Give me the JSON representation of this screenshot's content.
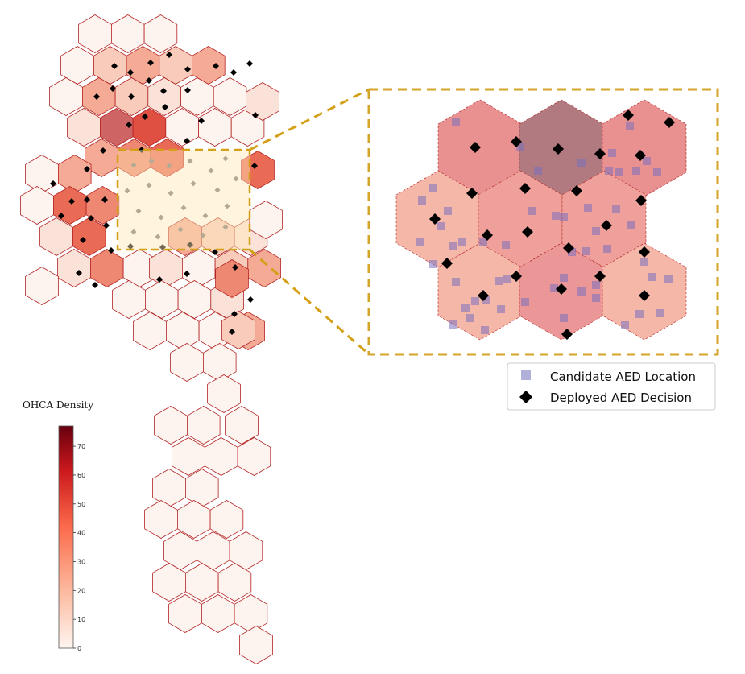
{
  "legend": {
    "candidate_label": "Candidate AED Location",
    "deployed_label": "Deployed AED Decision",
    "candidate_color": "#8f8fcc",
    "deployed_color": "#000000"
  },
  "colorbar": {
    "title": "OHCA Density",
    "min": 0,
    "max": 77,
    "ticks": [
      0,
      10,
      20,
      30,
      40,
      50,
      60,
      70
    ],
    "colors": [
      "#fff5f0",
      "#fcbba1",
      "#fb6a4a",
      "#cb181d",
      "#67000d"
    ]
  },
  "colors": {
    "hex_edge": "#b22222",
    "highlight_box": "#d4a017",
    "inset_box": "#d4a52a"
  }
}
